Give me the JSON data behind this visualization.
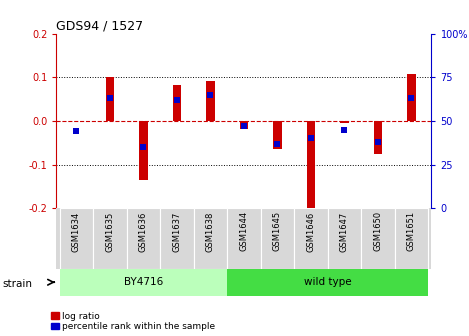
{
  "title": "GDS94 / 1527",
  "samples": [
    "GSM1634",
    "GSM1635",
    "GSM1636",
    "GSM1637",
    "GSM1638",
    "GSM1644",
    "GSM1645",
    "GSM1646",
    "GSM1647",
    "GSM1650",
    "GSM1651"
  ],
  "log_ratio": [
    0.0,
    0.101,
    -0.135,
    0.082,
    0.092,
    -0.018,
    -0.065,
    -0.205,
    -0.005,
    -0.075,
    0.108
  ],
  "percentile_rank": [
    44,
    63,
    35,
    62,
    65,
    47,
    37,
    40,
    45,
    38,
    63
  ],
  "strain_groups": [
    {
      "label": "BY4716",
      "start": 0,
      "end": 5,
      "color": "#bbffbb"
    },
    {
      "label": "wild type",
      "start": 5,
      "end": 11,
      "color": "#44dd44"
    }
  ],
  "ylim": [
    -0.2,
    0.2
  ],
  "y_left_ticks": [
    -0.2,
    -0.1,
    0.0,
    0.1,
    0.2
  ],
  "y_right_ticks": [
    0,
    25,
    50,
    75,
    100
  ],
  "bar_color": "#cc0000",
  "dot_color": "#0000cc",
  "zero_line_color": "#cc0000",
  "bg_color": "#ffffff",
  "left_axis_color": "#cc0000",
  "right_axis_color": "#0000cc",
  "bar_width": 0.25,
  "dot_size": 14,
  "strain_label": "strain",
  "legend_labels": [
    "log ratio",
    "percentile rank within the sample"
  ]
}
